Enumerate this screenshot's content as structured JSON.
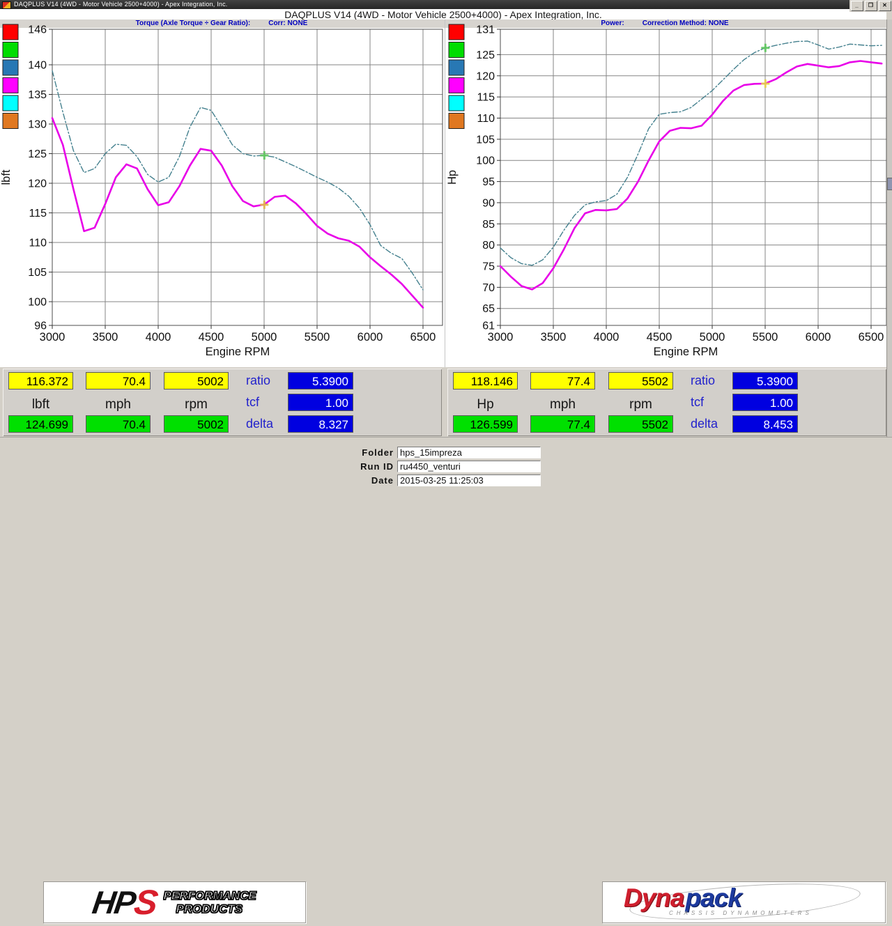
{
  "window": {
    "titlebar": "DAQPLUS V14 (4WD - Motor Vehicle 2500+4000) - Apex Integration, Inc.",
    "heading": "DAQPLUS V14 (4WD - Motor Vehicle 2500+4000) - Apex Integration, Inc.",
    "buttons": {
      "minimize": "_",
      "restore": "❐",
      "close": "✕"
    }
  },
  "headers": {
    "torque_label": "Torque (Axle Torque ÷ Gear Ratio):",
    "torque_corr": "Corr: NONE",
    "power_label": "Power:",
    "power_corr": "Correction Method: NONE"
  },
  "legend_colors": [
    "#ff0000",
    "#00dd00",
    "#2878b4",
    "#ff00ff",
    "#00ffff",
    "#e07820"
  ],
  "chart_data": [
    {
      "type": "line",
      "title": "Torque (Axle Torque ÷ Gear Ratio)",
      "xlabel": "Engine RPM",
      "ylabel": "lbft",
      "xlim": [
        3000,
        6500
      ],
      "ylim": [
        96,
        146
      ],
      "xticks": [
        3000,
        3500,
        4000,
        4500,
        5000,
        5500,
        6000,
        6500
      ],
      "yticks": [
        146,
        140,
        135,
        130,
        125,
        120,
        115,
        110,
        105,
        100,
        96
      ],
      "grid": true,
      "x_start": 3000,
      "x_step": 100,
      "series": [
        {
          "name": "current-run-magenta-solid",
          "color": "#e800e8",
          "values": [
            131,
            126.5,
            119,
            111.9,
            112.5,
            116.5,
            121,
            123.2,
            122.5,
            119,
            116.3,
            116.8,
            119.5,
            123,
            125.8,
            125.5,
            123,
            119.5,
            117,
            116.1,
            116.4,
            117.7,
            117.9,
            116.6,
            114.8,
            112.8,
            111.5,
            110.7,
            110.3,
            109.3,
            107.5,
            106,
            104.6,
            103,
            101,
            99
          ]
        },
        {
          "name": "comparison-run-teal-dashdot",
          "color": "#44808e",
          "values": [
            139,
            132,
            125.5,
            121.8,
            122.5,
            125,
            126.6,
            126.4,
            124.5,
            121.5,
            120.2,
            121,
            124.5,
            129.5,
            132.8,
            132.3,
            129.5,
            126.5,
            125,
            124.6,
            124.7,
            124.4,
            123.6,
            122.8,
            121.9,
            121,
            120.2,
            119.2,
            117.8,
            115.8,
            113,
            109.5,
            108.2,
            107.3,
            104.8,
            102
          ]
        }
      ],
      "markers": [
        {
          "x": 5002,
          "y": 116.372,
          "color": "#e2b84a",
          "name": "cursor-marker-current"
        },
        {
          "x": 5002,
          "y": 124.699,
          "color": "#5fc85f",
          "name": "cursor-marker-comparison"
        }
      ]
    },
    {
      "type": "line",
      "title": "Power",
      "xlabel": "Engine RPM",
      "ylabel": "Hp",
      "xlim": [
        3000,
        6500
      ],
      "ylim": [
        61,
        131
      ],
      "xticks": [
        3000,
        3500,
        4000,
        4500,
        5000,
        5500,
        6000,
        6500
      ],
      "yticks": [
        131,
        125,
        120,
        115,
        110,
        105,
        100,
        95,
        90,
        85,
        80,
        75,
        70,
        65,
        61
      ],
      "grid": true,
      "x_start": 3000,
      "x_step": 100,
      "series": [
        {
          "name": "current-run-magenta-solid",
          "color": "#e800e8",
          "values": [
            75,
            72.5,
            70.3,
            69.5,
            71,
            74.5,
            79,
            84,
            87.5,
            88.3,
            88.2,
            88.5,
            91,
            95,
            100,
            104.5,
            107,
            107.7,
            107.6,
            108.2,
            110.8,
            114,
            116.5,
            117.8,
            118.1,
            118.15,
            119.2,
            120.8,
            122.2,
            122.8,
            122.4,
            122,
            122.3,
            123.2,
            123.5,
            123.2,
            122.9
          ]
        },
        {
          "name": "comparison-run-teal-dashdot",
          "color": "#44808e",
          "values": [
            79.3,
            77,
            75.6,
            75.2,
            76.5,
            79.5,
            83.5,
            87,
            89.5,
            90.2,
            90.5,
            92,
            96,
            101.5,
            107.5,
            110.9,
            111.3,
            111.5,
            112.5,
            114.5,
            116.5,
            119,
            121.5,
            123.8,
            125.5,
            126.6,
            127.2,
            127.7,
            128.1,
            128.2,
            127.3,
            126.3,
            126.8,
            127.5,
            127.3,
            127.1,
            127.2
          ]
        }
      ],
      "markers": [
        {
          "x": 5502,
          "y": 118.146,
          "color": "#e8d44a",
          "name": "cursor-marker-current"
        },
        {
          "x": 5502,
          "y": 126.599,
          "color": "#5fc85f",
          "name": "cursor-marker-comparison"
        }
      ]
    }
  ],
  "panels": {
    "torque": {
      "top": [
        "116.372",
        "70.4",
        "5002"
      ],
      "units": [
        "lbft",
        "mph",
        "rpm"
      ],
      "bottom": [
        "124.699",
        "70.4",
        "5002"
      ],
      "stats": [
        [
          "ratio",
          "5.3900"
        ],
        [
          "tcf",
          "1.00"
        ],
        [
          "delta",
          "8.327"
        ]
      ]
    },
    "power": {
      "top": [
        "118.146",
        "77.4",
        "5502"
      ],
      "units": [
        "Hp",
        "mph",
        "rpm"
      ],
      "bottom": [
        "126.599",
        "77.4",
        "5502"
      ],
      "stats": [
        [
          "ratio",
          "5.3900"
        ],
        [
          "tcf",
          "1.00"
        ],
        [
          "delta",
          "8.453"
        ]
      ]
    }
  },
  "footer": {
    "fields": [
      {
        "label": "Folder",
        "value": "hps_15impreza"
      },
      {
        "label": "Run ID",
        "value": "ru4450_venturi"
      },
      {
        "label": "Date",
        "value": "2015-03-25 11:25:03"
      }
    ],
    "hps_logo": {
      "hp": "HP",
      "s": "S",
      "line1": "PERFORMANCE",
      "line2": "PRODUCTS"
    },
    "dynapack_logo": {
      "part1": "Dyna",
      "part2": "pack",
      "subtitle": "CHASSIS DYNAMOMETERS"
    }
  }
}
